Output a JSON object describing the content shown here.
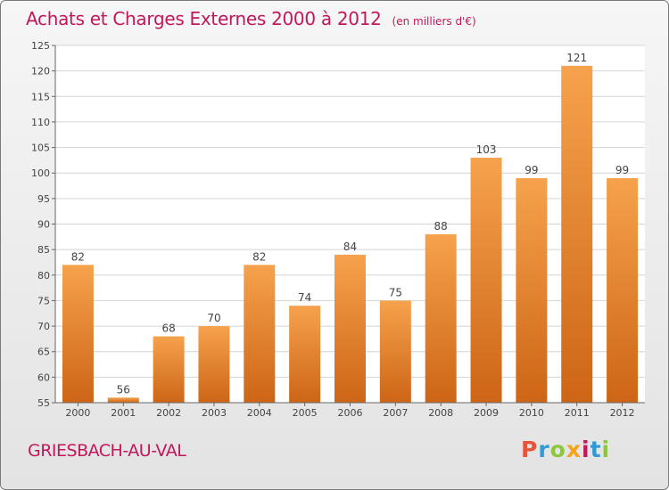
{
  "title": "Achats et Charges Externes 2000 à 2012",
  "subtitle": "(en milliers d'€)",
  "location": "GRIESBACH-AU-VAL",
  "logo": {
    "letters": [
      "P",
      "r",
      "o",
      "x",
      "i",
      "t",
      "i"
    ],
    "colors": [
      "#e6553a",
      "#2e9bd6",
      "#8dc63f",
      "#f7a21b",
      "#c2185b",
      "#2e9bd6",
      "#8dc63f"
    ]
  },
  "colors": {
    "title": "#c2185b",
    "bar_top": "#f6a24d",
    "bar_bottom": "#cd6516",
    "grid": "#d4d4d4"
  },
  "chart_data": {
    "type": "bar",
    "categories": [
      "2000",
      "2001",
      "2002",
      "2003",
      "2004",
      "2005",
      "2006",
      "2007",
      "2008",
      "2009",
      "2010",
      "2011",
      "2012"
    ],
    "values": [
      82,
      56,
      68,
      70,
      82,
      74,
      84,
      75,
      88,
      103,
      99,
      121,
      99
    ],
    "ylim": [
      55,
      125
    ],
    "yticks": [
      55,
      60,
      65,
      70,
      75,
      80,
      85,
      90,
      95,
      100,
      105,
      110,
      115,
      120,
      125
    ],
    "grid": true
  }
}
